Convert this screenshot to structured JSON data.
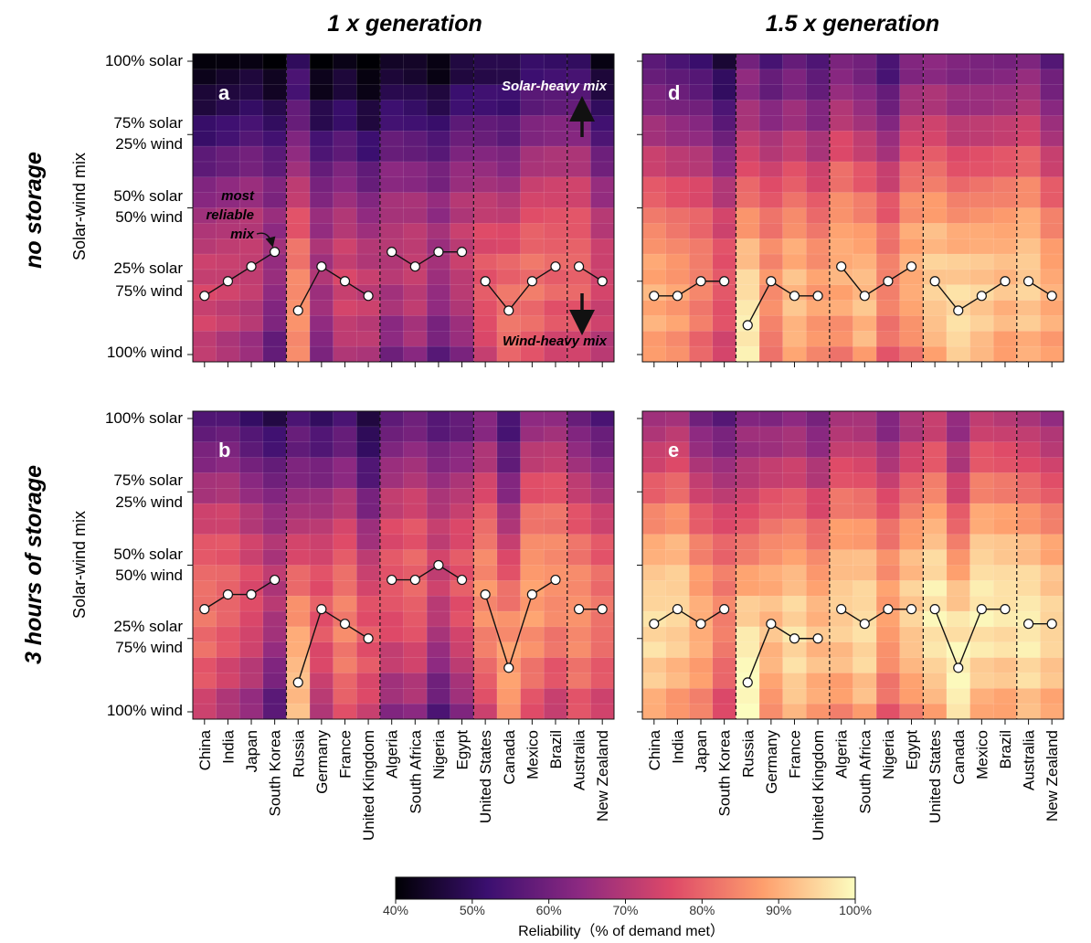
{
  "figure": {
    "col_titles": [
      "1 x generation",
      "1.5 x generation"
    ],
    "row_titles": [
      "no storage",
      "3 hours of storage"
    ],
    "ylabel": "Solar-wind mix",
    "yticks": [
      "100% solar",
      "75% solar",
      "25% wind",
      "50% solar",
      "50% wind",
      "25% solar",
      "75% wind",
      "100% wind"
    ],
    "annotations": {
      "most_reliable": [
        "most",
        "reliable",
        "mix"
      ],
      "solar_heavy": "Solar-heavy mix",
      "wind_heavy": "Wind-heavy mix"
    },
    "colorbar": {
      "title": "Reliability（% of demand met）",
      "ticks": [
        "40%",
        "50%",
        "60%",
        "70%",
        "80%",
        "90%",
        "100%"
      ],
      "range": [
        40,
        100
      ]
    },
    "colors": {
      "c0": "#000004",
      "c1": "#3b0f70",
      "c2": "#8c2981",
      "c3": "#de4968",
      "c4": "#fe9f6d",
      "c5": "#fcfdbf"
    }
  },
  "chart_data": {
    "type": "heatmap",
    "countries": [
      "China",
      "India",
      "Japan",
      "South Korea",
      "Russia",
      "Germany",
      "France",
      "United Kingdom",
      "Algeria",
      "South Africa",
      "Nigeria",
      "Egypt",
      "United States",
      "Canada",
      "Mexico",
      "Brazil",
      "Australia",
      "New Zealand"
    ],
    "groups": [
      [
        0,
        3
      ],
      [
        4,
        7
      ],
      [
        8,
        11
      ],
      [
        12,
        15
      ],
      [
        16,
        17
      ]
    ],
    "y_axis": {
      "label": "Solar-wind mix",
      "range": [
        0,
        100
      ],
      "unit": "% solar"
    },
    "color_scale": {
      "label": "Reliability (% of demand met)",
      "range": [
        40,
        100
      ]
    },
    "panels": [
      {
        "label": "a",
        "generation": "1 x generation",
        "storage": "no storage",
        "most_reliable_solar_pct": [
          20,
          25,
          30,
          35,
          15,
          30,
          25,
          20,
          35,
          30,
          35,
          35,
          25,
          15,
          25,
          30,
          30,
          25
        ],
        "peak_reliability": [
          74,
          73,
          72,
          66,
          86,
          68,
          74,
          72,
          70,
          72,
          67,
          72,
          78,
          82,
          82,
          80,
          80,
          74
        ]
      },
      {
        "label": "b",
        "generation": "1 x generation",
        "storage": "3 hours of storage",
        "most_reliable_solar_pct": [
          35,
          40,
          40,
          45,
          10,
          35,
          30,
          25,
          45,
          45,
          50,
          45,
          40,
          15,
          40,
          45,
          35,
          35
        ],
        "peak_reliability": [
          82,
          80,
          76,
          70,
          92,
          78,
          84,
          78,
          78,
          80,
          73,
          78,
          86,
          88,
          88,
          86,
          86,
          82
        ]
      },
      {
        "label": "d",
        "generation": "1.5 x generation",
        "storage": "no storage",
        "most_reliable_solar_pct": [
          20,
          20,
          25,
          25,
          10,
          25,
          20,
          20,
          30,
          20,
          25,
          30,
          25,
          15,
          20,
          25,
          25,
          20
        ],
        "peak_reliability": [
          90,
          88,
          84,
          78,
          98,
          86,
          92,
          88,
          90,
          92,
          84,
          90,
          94,
          96,
          94,
          92,
          94,
          90
        ]
      },
      {
        "label": "e",
        "generation": "1.5 x generation",
        "storage": "3 hours of storage",
        "most_reliable_solar_pct": [
          30,
          35,
          30,
          35,
          10,
          30,
          25,
          25,
          35,
          30,
          35,
          35,
          35,
          15,
          35,
          35,
          30,
          30
        ],
        "peak_reliability": [
          96,
          95,
          90,
          84,
          100,
          92,
          96,
          92,
          94,
          96,
          88,
          94,
          98,
          99,
          98,
          97,
          98,
          95
        ]
      }
    ]
  }
}
